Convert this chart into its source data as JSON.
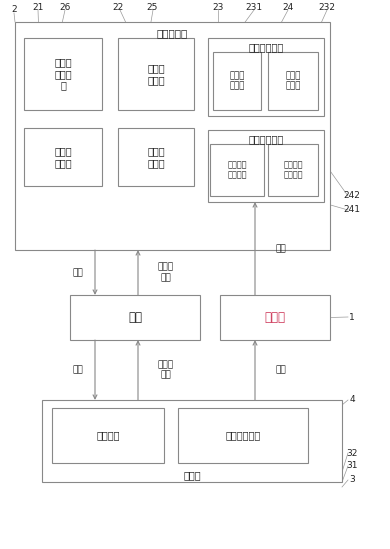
{
  "bg_color": "#ffffff",
  "figure_size": [
    3.9,
    5.49
  ],
  "dpi": 100,
  "lc": "#888888",
  "tc": "#222222",
  "qr_color": "#cc3355",
  "lw": 0.8,
  "labels": {
    "big_title": "大数据平台",
    "box_21": "二维码\n存储模\n块",
    "box_26": "独立查\n询模块",
    "box_22": "用户账\n户模块",
    "box_25": "保密信\n息模块",
    "pub_title": "公开信息模块",
    "box_231": "基础信\n息单元",
    "box_232": "种养信\n息单元",
    "priv_title": "专有信息模块",
    "box_241": "养护计划\n生成单元",
    "box_242": "养护计划\n跟踪单元",
    "network": "网络",
    "qrcode": "二维码",
    "user_title": "用户端",
    "pos": "定位模块",
    "map": "电子地图模块",
    "info1": "信息",
    "req_info1": "请求、\n信息",
    "req1": "请求",
    "info2": "信息",
    "req_info2": "请求、\n信息",
    "req2": "请求",
    "n2": "2",
    "n21": "21",
    "n26": "26",
    "n22": "22",
    "n25": "25",
    "n23": "23",
    "n231": "231",
    "n24": "24",
    "n232": "232",
    "n242": "242",
    "n241": "241",
    "n1": "1",
    "n4": "4",
    "n32": "32",
    "n31": "31",
    "n3": "3"
  }
}
